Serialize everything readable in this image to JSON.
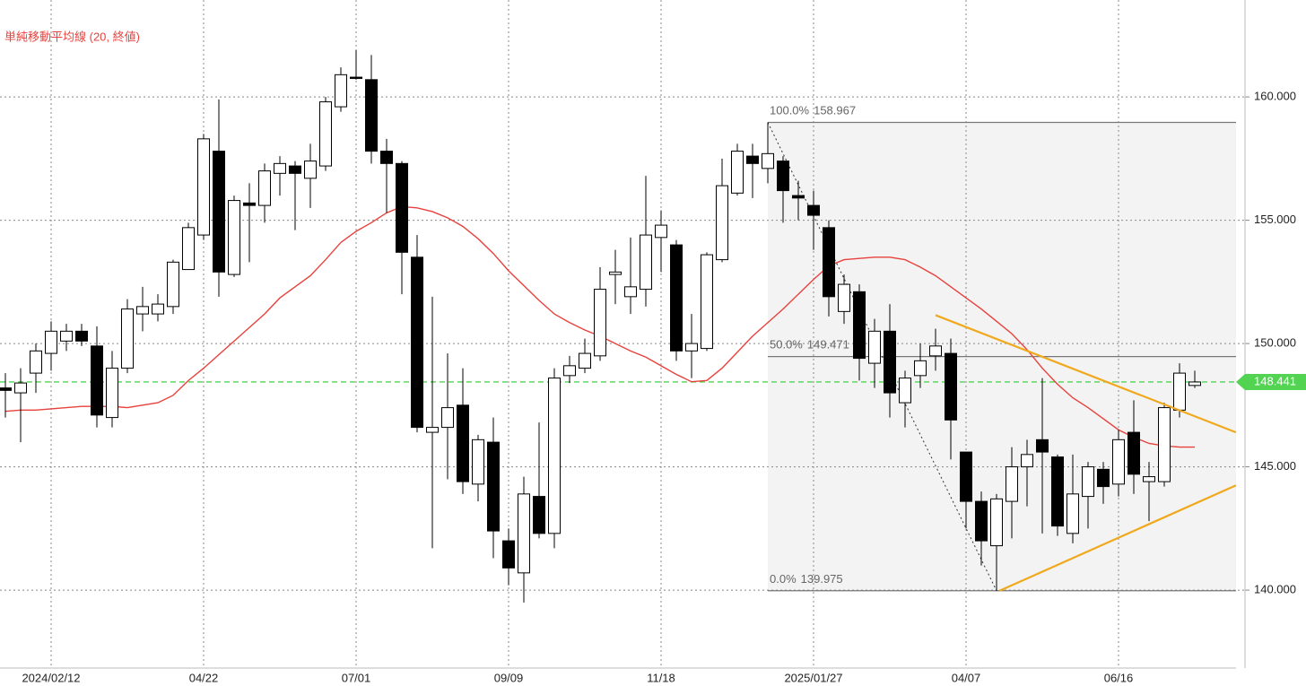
{
  "chart_data": {
    "type": "candlestick",
    "categories": [
      null,
      null,
      null,
      "2024/02/12",
      null,
      null,
      null,
      null,
      null,
      null,
      null,
      null,
      null,
      "04/22",
      null,
      null,
      null,
      null,
      null,
      null,
      null,
      null,
      null,
      "07/01",
      null,
      null,
      null,
      null,
      null,
      null,
      null,
      null,
      null,
      "09/09",
      null,
      null,
      null,
      null,
      null,
      null,
      null,
      null,
      null,
      "11/18",
      null,
      null,
      null,
      null,
      null,
      null,
      null,
      null,
      null,
      "2025/01/27",
      null,
      null,
      null,
      null,
      null,
      null,
      null,
      null,
      null,
      "04/07",
      null,
      null,
      null,
      null,
      null,
      null,
      null,
      null,
      null,
      "06/16",
      null,
      null,
      null,
      null,
      null
    ],
    "open": [
      148.2,
      148.0,
      148.8,
      149.6,
      150.1,
      150.5,
      149.9,
      147.0,
      149.0,
      151.2,
      151.2,
      151.5,
      153.0,
      154.4,
      157.8,
      152.8,
      155.7,
      155.6,
      156.9,
      157.2,
      156.7,
      157.2,
      159.6,
      160.8,
      160.7,
      157.8,
      157.3,
      153.5,
      146.4,
      146.6,
      147.5,
      144.3,
      146.0,
      142.0,
      140.7,
      143.8,
      142.3,
      148.7,
      149.0,
      149.5,
      152.8,
      151.9,
      152.2,
      154.3,
      154.0,
      149.7,
      149.8,
      153.4,
      156.1,
      157.6,
      157.1,
      157.4,
      156.0,
      155.6,
      154.7,
      151.3,
      152.1,
      149.2,
      150.5,
      147.6,
      148.7,
      149.5,
      149.6,
      145.6,
      143.6,
      141.8,
      143.6,
      145.0,
      146.1,
      145.4,
      142.3,
      143.8,
      144.9,
      144.3,
      146.4,
      144.4,
      144.4,
      147.3,
      148.3
    ],
    "high": [
      148.8,
      149.0,
      150.0,
      150.9,
      150.8,
      150.8,
      150.7,
      149.7,
      151.8,
      152.3,
      152.0,
      153.4,
      154.9,
      158.5,
      159.9,
      156.0,
      156.5,
      157.3,
      157.6,
      157.4,
      158.1,
      160.0,
      161.2,
      161.9,
      161.7,
      158.3,
      157.4,
      154.4,
      151.9,
      149.6,
      149.0,
      146.3,
      147.0,
      142.5,
      144.6,
      146.8,
      149.0,
      149.5,
      150.2,
      153.1,
      153.8,
      154.3,
      156.8,
      155.4,
      154.2,
      151.2,
      153.7,
      157.5,
      158.1,
      158.1,
      158.967,
      157.6,
      156.6,
      156.2,
      155.0,
      152.8,
      152.4,
      151.0,
      151.6,
      148.9,
      150.0,
      150.6,
      150.2,
      145.6,
      144.0,
      143.9,
      145.8,
      146.1,
      148.6,
      145.5,
      145.5,
      145.2,
      145.2,
      146.5,
      147.7,
      145.2,
      147.6,
      149.2,
      148.9
    ],
    "low": [
      147.0,
      146.0,
      148.0,
      148.9,
      149.7,
      149.9,
      146.6,
      146.6,
      148.8,
      150.5,
      150.9,
      151.2,
      153.0,
      154.2,
      151.9,
      152.7,
      153.3,
      154.9,
      156.0,
      154.6,
      155.5,
      157.0,
      159.4,
      160.7,
      157.3,
      155.3,
      152.0,
      146.4,
      141.7,
      144.5,
      143.9,
      143.6,
      141.3,
      140.2,
      139.5,
      142.1,
      141.7,
      148.4,
      148.8,
      149.3,
      151.6,
      151.2,
      151.5,
      152.9,
      149.3,
      148.6,
      149.7,
      153.3,
      156.0,
      155.9,
      156.5,
      154.9,
      155.0,
      153.8,
      151.1,
      150.8,
      148.5,
      148.2,
      147.0,
      146.6,
      148.2,
      148.9,
      145.3,
      142.5,
      141.0,
      139.975,
      142.1,
      143.4,
      142.3,
      142.2,
      141.9,
      142.5,
      143.5,
      143.8,
      143.9,
      142.8,
      144.2,
      147.0,
      148.2
    ],
    "close": [
      148.1,
      148.4,
      149.7,
      150.5,
      150.5,
      150.1,
      147.1,
      149.0,
      151.4,
      151.5,
      151.6,
      153.3,
      154.7,
      158.3,
      152.9,
      155.8,
      155.6,
      157.0,
      157.3,
      156.9,
      157.4,
      159.8,
      160.9,
      160.75,
      157.8,
      157.3,
      153.7,
      146.6,
      146.6,
      147.4,
      144.4,
      146.1,
      142.4,
      140.9,
      143.9,
      142.3,
      148.6,
      149.1,
      149.6,
      152.2,
      152.9,
      152.3,
      154.4,
      154.8,
      149.7,
      150.0,
      153.6,
      156.4,
      157.8,
      157.3,
      157.7,
      156.2,
      155.9,
      155.2,
      151.9,
      152.4,
      149.4,
      150.5,
      148.0,
      148.6,
      149.3,
      149.9,
      146.9,
      143.6,
      142.0,
      143.7,
      145.0,
      145.5,
      145.6,
      142.6,
      143.9,
      145.0,
      144.2,
      146.1,
      144.7,
      144.6,
      147.4,
      148.8,
      148.441
    ],
    "up_color": "#ffffff",
    "down_color": "#000000",
    "sma": {
      "name": "単純移動平均線 (20, 終値)",
      "color": "#e8413c",
      "values": [
        147.25,
        147.3,
        147.3,
        147.35,
        147.4,
        147.45,
        147.45,
        147.45,
        147.4,
        147.5,
        147.6,
        147.9,
        148.5,
        149.0,
        149.55,
        150.1,
        150.65,
        151.2,
        151.85,
        152.3,
        152.75,
        153.4,
        154.1,
        154.55,
        154.9,
        155.3,
        155.55,
        155.5,
        155.35,
        155.1,
        154.75,
        154.25,
        153.65,
        152.95,
        152.35,
        151.75,
        151.2,
        150.85,
        150.55,
        150.3,
        150.0,
        149.7,
        149.45,
        149.1,
        148.75,
        148.45,
        148.5,
        149.0,
        149.65,
        150.3,
        150.85,
        151.4,
        152.0,
        152.6,
        153.15,
        153.4,
        153.45,
        153.5,
        153.5,
        153.4,
        153.1,
        152.75,
        152.3,
        151.85,
        151.4,
        150.9,
        150.4,
        149.75,
        149.0,
        148.35,
        147.8,
        147.4,
        146.95,
        146.5,
        146.2,
        145.95,
        145.85,
        145.8,
        145.8
      ]
    },
    "fibonacci": {
      "from": 50,
      "to": 65,
      "levels": [
        {
          "label": "100.0%",
          "value": 158.967
        },
        {
          "label": "50.0%",
          "value": 149.471
        },
        {
          "label": "0.0%",
          "value": 139.975
        }
      ]
    },
    "trendlines": [
      {
        "color": "#f0a81c",
        "x": [
          61,
          80.7
        ],
        "values": [
          151.15,
          146.4
        ]
      },
      {
        "color": "#f0a81c",
        "x": [
          65.2,
          80.7
        ],
        "values": [
          139.975,
          144.25
        ]
      }
    ],
    "last_price": {
      "value": 148.441,
      "color": "#52d452"
    },
    "ylim": [
      136.84,
      163.93
    ],
    "yticks": [
      {
        "value": 140,
        "label": "140.000"
      },
      {
        "value": 145,
        "label": "145.000"
      },
      {
        "value": 150,
        "label": "150.000"
      },
      {
        "value": 155,
        "label": "155.000"
      },
      {
        "value": 160,
        "label": "160.000"
      }
    ],
    "grid": true
  }
}
